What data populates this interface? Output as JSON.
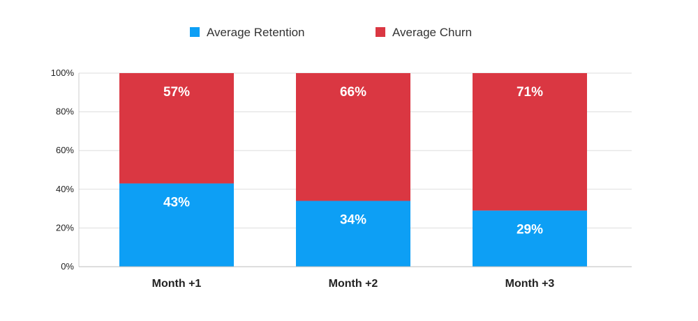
{
  "chart_data": {
    "type": "bar",
    "stacked": true,
    "categories": [
      "Month +1",
      "Month +2",
      "Month +3"
    ],
    "series": [
      {
        "name": "Average Retention",
        "values": [
          43,
          34,
          29
        ],
        "color": "#0d9ff5",
        "labels": [
          "43%",
          "34%",
          "29%"
        ]
      },
      {
        "name": "Average Churn",
        "values": [
          57,
          66,
          71
        ],
        "color": "#da3742",
        "labels": [
          "57%",
          "66%",
          "71%"
        ]
      }
    ],
    "ylim": [
      0,
      100
    ],
    "yticks": [
      "0%",
      "20%",
      "40%",
      "60%",
      "80%",
      "100%"
    ],
    "grid": true,
    "legend_position": "top-center",
    "gridline_color": "#dddddd"
  }
}
